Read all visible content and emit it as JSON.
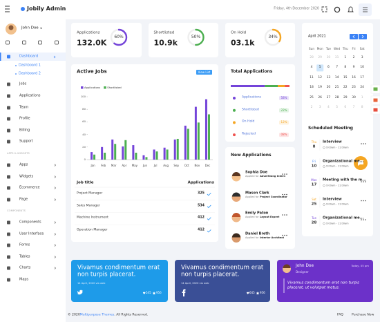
{
  "header": {
    "title": "Jobily Admin",
    "date": "Friday, 4th December 2020"
  },
  "sidebar": {
    "user": "John Doe",
    "menu_main": [
      "Dashboard",
      "Dashboard 1",
      "Dashboard 2",
      "Jobs",
      "Applications",
      "Team",
      "Profile",
      "Billing",
      "Support"
    ],
    "apps_heading": "APPS & WIDGETS",
    "menu_apps": [
      "Apps",
      "Widgets",
      "Ecommerce",
      "Page"
    ],
    "components_heading": "COMPONENTS",
    "menu_components": [
      "Components",
      "User Interface",
      "Forms",
      "Tables",
      "Charts",
      "Maps"
    ]
  },
  "stats": [
    {
      "label": "Applications",
      "value": "132.0K",
      "percent": 60,
      "percent_label": "60%",
      "color": "#7444d9"
    },
    {
      "label": "Shortlisted",
      "value": "10.9k",
      "percent": 50,
      "percent_label": "50%",
      "color": "#4caf50"
    },
    {
      "label": "On Hold",
      "value": "03.1k",
      "percent": 34,
      "percent_label": "34%",
      "color": "#f5a623"
    }
  ],
  "active_jobs": {
    "title": "Active Jobs",
    "button": "View List"
  },
  "chart_data": {
    "type": "bar",
    "categories": [
      "Jan",
      "Feb",
      "Mar",
      "Apr",
      "May",
      "Jun",
      "Jul",
      "Aug",
      "Sep",
      "Oct",
      "Nov",
      "Dec"
    ],
    "series": [
      {
        "name": "Applications",
        "color": "#7444d9",
        "values": [
          12,
          20,
          32,
          21,
          23,
          7,
          16,
          19,
          32,
          54,
          84,
          96
        ]
      },
      {
        "name": "Shortlisted",
        "color": "#4caf50",
        "values": [
          8,
          11,
          25,
          31,
          11,
          4,
          13,
          16,
          33,
          49,
          59,
          72
        ]
      }
    ],
    "ylim": [
      0,
      100
    ],
    "yticks": [
      0,
      20,
      40,
      60,
      80,
      100
    ],
    "grid": false,
    "legend": "top-left"
  },
  "job_table": {
    "headers": [
      "Job title",
      "Applications"
    ],
    "rows": [
      [
        "Project Manager",
        "325"
      ],
      [
        "Sales Manager",
        "534"
      ],
      [
        "Machine Instrument",
        "412"
      ],
      [
        "Operation Manager",
        "412"
      ]
    ]
  },
  "total_applications": {
    "title": "Total Applications",
    "items": [
      {
        "label": "Applications",
        "value": 58,
        "value_label": "58%",
        "color": "#7444d9"
      },
      {
        "label": "Shortlisted",
        "value": 22,
        "value_label": "22%",
        "color": "#4caf50"
      },
      {
        "label": "On Hold",
        "value": 12,
        "value_label": "12%",
        "color": "#f5a623"
      },
      {
        "label": "Rejected",
        "value": 8,
        "value_label": "08%",
        "color": "#ef5350"
      }
    ]
  },
  "new_applications": {
    "title": "New Applications",
    "items": [
      {
        "name": "Sophia Doe",
        "note": "Applied for",
        "role": "Advertising Intern"
      },
      {
        "name": "Mason Clark",
        "note": "Applied for",
        "role": "Project Coordinator"
      },
      {
        "name": "Emily Paton",
        "note": "Applied for",
        "role": "Layout Expert"
      },
      {
        "name": "Daniel Breth",
        "note": "Applied for",
        "role": "Interior Architect"
      }
    ]
  },
  "calendar": {
    "month": "April 2021",
    "weekdays": [
      "Sun",
      "Mon",
      "Tue",
      "Wed",
      "Thu",
      "Fri",
      "Sat"
    ],
    "weeks": [
      [
        28,
        29,
        30,
        31,
        1,
        2,
        3
      ],
      [
        4,
        5,
        6,
        7,
        8,
        9,
        10
      ],
      [
        11,
        12,
        13,
        14,
        15,
        16,
        17
      ],
      [
        18,
        19,
        20,
        21,
        22,
        23,
        24
      ],
      [
        25,
        26,
        27,
        28,
        29,
        30,
        1
      ],
      [
        2,
        3,
        4,
        5,
        6,
        7,
        8
      ]
    ],
    "selected_week": 1,
    "selected_day": 1
  },
  "meetings": {
    "title": "Scheduled Meeting",
    "items": [
      {
        "day": "Thu",
        "date": "8",
        "title": "Interview",
        "time": "9:00am - 11:00am",
        "color": "#f5a623"
      },
      {
        "day": "Fri",
        "date": "10",
        "title": "Organizational me...",
        "time": "9:00am - 11:00am",
        "color": "#3b82f6"
      },
      {
        "day": "Mon",
        "date": "17",
        "title": "Meeting with the m...",
        "time": "9:00am - 11:00am",
        "color": "#7444d9"
      },
      {
        "day": "Sat",
        "date": "25",
        "title": "Interview",
        "time": "9:00am - 11:00am",
        "color": "#f5a623"
      },
      {
        "day": "Tue",
        "date": "28",
        "title": "Organizational me...",
        "time": "9:00am - 11:00am",
        "color": "#7444d9"
      }
    ]
  },
  "social": [
    {
      "text": "Vivamus condimentum erat non turpis placerat.",
      "meta": "14 April, 2020 via web",
      "likes": "545",
      "stars": "956",
      "color": "#1e9be9"
    },
    {
      "text": "Vivamus condimentum erat non turpis placerat.",
      "meta": "14 April, 2020 via web",
      "likes": "645",
      "stars": "956",
      "color": "#3a4f96"
    }
  ],
  "profile_card": {
    "name": "John Doe",
    "role": "Designer",
    "time": "Today, 05 pm",
    "quote": "Vivamus condimentum erat non turpis placerat, ut volutpat metus."
  },
  "footer": {
    "copyright_pre": "© 2020 ",
    "brand": "Multipurpose Themes",
    "copyright_post": ". All Rights Reserved.",
    "links": [
      "FAQ",
      "Purchase Now"
    ]
  }
}
